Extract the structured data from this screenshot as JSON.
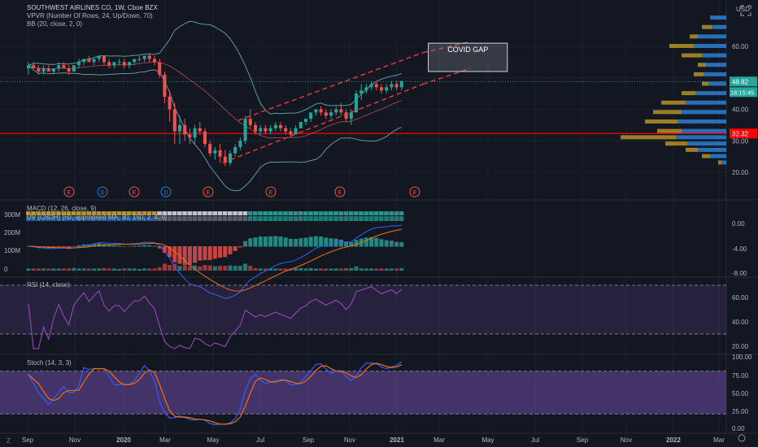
{
  "legend": {
    "title": "SOUTHWEST AIRLINES CO, 1W, Cboe BZX",
    "vpvr": "VPVR (Number Of Rows, 24, Up/Down, 70)",
    "bb": "BB (20, close, 2, 0)"
  },
  "pane_titles": {
    "macd": "MACD (12, 26, close, 9)",
    "uv": "UV (CBDH) (60, appropried MA, 30, 150, 2, 4, 0)",
    "rsi": "RSI (14, close)",
    "stoch": "Stoch (14, 3, 3)"
  },
  "currency": "USD",
  "price_axis": [
    "60.00",
    "40.00",
    "30.00",
    "20.00"
  ],
  "price_badges": {
    "last": "48.82",
    "countdown": "18:15:45",
    "line": "32.32"
  },
  "volume_axis": [
    "300M",
    "200M",
    "100M",
    "0"
  ],
  "macd_axis": [
    "0.00",
    "-4.00",
    "-8.00"
  ],
  "rsi_axis": [
    "60.00",
    "40.00",
    "20.00"
  ],
  "stoch_axis": [
    "100.00",
    "75.00",
    "50.00",
    "25.00",
    "0.00"
  ],
  "time_axis": [
    "Sep",
    "Nov",
    "2020",
    "Mar",
    "May",
    "Jul",
    "Sep",
    "Nov",
    "2021",
    "Mar",
    "May",
    "Jul",
    "Sep",
    "Nov",
    "2022",
    "Mar"
  ],
  "annotation": "COVID GAP",
  "events": [
    "E",
    "D",
    "E",
    "D",
    "E",
    "E",
    "E",
    "E"
  ],
  "colors": {
    "up": "#26a69a",
    "down": "#ef5350",
    "bb": "#5b9aa0",
    "rsi": "#8e44ad",
    "hline": "#ff0000"
  },
  "chart_data": {
    "type": "candlestick",
    "symbol": "SOUTHWEST AIRLINES CO",
    "interval": "1W",
    "price_range": [
      15,
      70
    ],
    "x_range": [
      "2019-08-26",
      "2022-03-01"
    ],
    "horizontal_line": 32.32,
    "last_price": 48.82,
    "trend_channel": {
      "lower": [
        [
          "2020-05-11",
          23.0
        ],
        [
          "2021-02-01",
          48.0
        ]
      ],
      "upper": [
        [
          "2020-06-01",
          36.5
        ],
        [
          "2021-02-01",
          58.0
        ]
      ]
    },
    "annotation_box": {
      "label": "COVID GAP",
      "price_top": 61,
      "price_bottom": 52,
      "x_from": "2021-02-08",
      "x_to": "2021-05-24"
    },
    "candles": [
      [
        53,
        55,
        51,
        54
      ],
      [
        54,
        55,
        53,
        53
      ],
      [
        53,
        54,
        51,
        52
      ],
      [
        52,
        54,
        51,
        53
      ],
      [
        53,
        54,
        52,
        52
      ],
      [
        52,
        53,
        51,
        53
      ],
      [
        53,
        55,
        52,
        54
      ],
      [
        54,
        55,
        53,
        53
      ],
      [
        53,
        54,
        51,
        52
      ],
      [
        52,
        54,
        52,
        54
      ],
      [
        54,
        56,
        53,
        55
      ],
      [
        55,
        56,
        54,
        56
      ],
      [
        56,
        57,
        55,
        55
      ],
      [
        55,
        56,
        54,
        56
      ],
      [
        56,
        57,
        55,
        57
      ],
      [
        57,
        57,
        54,
        55
      ],
      [
        55,
        56,
        53,
        54
      ],
      [
        54,
        55,
        53,
        55
      ],
      [
        55,
        56,
        54,
        55
      ],
      [
        55,
        56,
        53,
        54
      ],
      [
        54,
        55,
        53,
        55
      ],
      [
        55,
        56,
        54,
        56
      ],
      [
        56,
        57,
        55,
        56
      ],
      [
        56,
        57,
        55,
        57
      ],
      [
        57,
        58,
        55,
        56
      ],
      [
        56,
        57,
        54,
        55
      ],
      [
        55,
        56,
        50,
        51
      ],
      [
        51,
        52,
        42,
        44
      ],
      [
        44,
        46,
        36,
        40
      ],
      [
        40,
        42,
        29,
        33
      ],
      [
        33,
        38,
        29,
        35
      ],
      [
        35,
        37,
        30,
        32
      ],
      [
        32,
        34,
        29,
        31
      ],
      [
        31,
        35,
        29,
        34
      ],
      [
        34,
        36,
        32,
        33
      ],
      [
        33,
        34,
        28,
        29
      ],
      [
        29,
        30,
        25,
        26
      ],
      [
        26,
        28,
        24,
        27
      ],
      [
        27,
        29,
        23,
        25
      ],
      [
        25,
        27,
        22,
        23
      ],
      [
        23,
        27,
        22,
        26
      ],
      [
        26,
        29,
        25,
        28
      ],
      [
        28,
        31,
        27,
        30
      ],
      [
        30,
        38,
        29,
        37
      ],
      [
        37,
        40,
        34,
        35
      ],
      [
        35,
        36,
        32,
        33
      ],
      [
        33,
        35,
        32,
        34
      ],
      [
        34,
        35,
        32,
        33
      ],
      [
        33,
        35,
        32,
        34
      ],
      [
        34,
        36,
        33,
        35
      ],
      [
        35,
        36,
        33,
        34
      ],
      [
        34,
        35,
        32,
        33
      ],
      [
        33,
        34,
        31,
        32
      ],
      [
        32,
        35,
        32,
        34
      ],
      [
        34,
        36,
        34,
        36
      ],
      [
        36,
        37,
        35,
        37
      ],
      [
        37,
        39,
        36,
        39
      ],
      [
        39,
        40,
        38,
        40
      ],
      [
        40,
        41,
        38,
        39
      ],
      [
        39,
        40,
        37,
        38
      ],
      [
        38,
        40,
        37,
        39
      ],
      [
        39,
        41,
        38,
        40
      ],
      [
        40,
        42,
        38,
        39
      ],
      [
        39,
        40,
        36,
        37
      ],
      [
        37,
        40,
        35,
        39
      ],
      [
        39,
        46,
        39,
        45
      ],
      [
        45,
        48,
        43,
        46
      ],
      [
        46,
        48,
        45,
        47
      ],
      [
        47,
        49,
        46,
        48
      ],
      [
        48,
        49,
        46,
        47
      ],
      [
        47,
        48,
        45,
        46
      ],
      [
        46,
        48,
        45,
        47
      ],
      [
        47,
        49,
        46,
        48
      ],
      [
        48,
        49,
        46,
        47
      ],
      [
        47,
        49,
        46,
        49
      ]
    ]
  }
}
